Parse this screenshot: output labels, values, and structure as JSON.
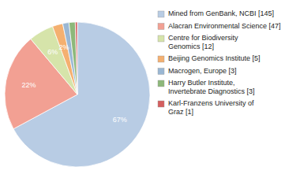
{
  "chart_data": {
    "type": "pie",
    "categories": [
      "Mined from GenBank, NCBI [145]",
      "Alacran Environmental Science [47]",
      "Centre for Biodiversity\nGenomics [12]",
      "Beijing Genomics Institute [5]",
      "Macrogen, Europe [3]",
      "Harry Butler Institute,\nInvertebrate Diagnostics [3]",
      "Karl-Franzens University of\nGraz [1]"
    ],
    "values": [
      67.13,
      21.76,
      5.56,
      2.31,
      1.39,
      1.39,
      0.46
    ],
    "value_labels": [
      "67%",
      "22%",
      "6%",
      "2%",
      null,
      null,
      null
    ],
    "colors": [
      "#b8cce4",
      "#f2a093",
      "#d6e4aa",
      "#f4b070",
      "#9ab7d3",
      "#8db87a",
      "#d45f5f"
    ],
    "data_labels": true,
    "legend": "right"
  }
}
